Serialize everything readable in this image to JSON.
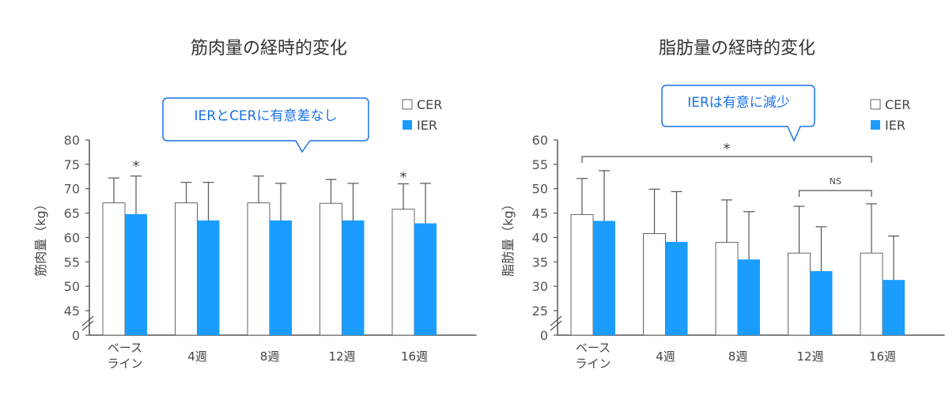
{
  "colors": {
    "cer_fill": "#ffffff",
    "ier_fill": "#1a9dff",
    "callout_border": "#1a73e8",
    "axis": "#555555",
    "error": "#555555"
  },
  "chart_data": [
    {
      "type": "bar",
      "title": "筋肉量の経時的変化",
      "ylabel": "筋肉量（kg）",
      "categories": [
        "ベース\nライン",
        "4週",
        "8週",
        "12週",
        "16週"
      ],
      "categories_display": [
        [
          "ベース",
          "ライン"
        ],
        [
          "4週"
        ],
        [
          "8週"
        ],
        [
          "12週"
        ],
        [
          "16週"
        ]
      ],
      "yticks": [
        0,
        45,
        50,
        55,
        60,
        65,
        70,
        75,
        80
      ],
      "axis_break": true,
      "ylim": [
        40,
        80
      ],
      "series": [
        {
          "name": "CER",
          "values": [
            67.1,
            67.1,
            67.1,
            67.0,
            65.8
          ],
          "errors": [
            5.1,
            4.2,
            5.5,
            4.9,
            5.2
          ]
        },
        {
          "name": "IER",
          "values": [
            64.8,
            63.5,
            63.5,
            63.5,
            62.9
          ],
          "errors": [
            7.8,
            7.8,
            7.6,
            7.6,
            8.2
          ]
        }
      ],
      "significance_marks": [
        "*",
        "*"
      ],
      "callout": "IERとCERに有意差なし",
      "legend_position": "top-right"
    },
    {
      "type": "bar",
      "title": "脂肪量の経時的変化",
      "ylabel": "脂肪量（kg）",
      "categories": [
        "ベース\nライン",
        "4週",
        "8週",
        "12週",
        "16週"
      ],
      "categories_display": [
        [
          "ベース",
          "ライン"
        ],
        [
          "4週"
        ],
        [
          "8週"
        ],
        [
          "12週"
        ],
        [
          "16週"
        ]
      ],
      "yticks": [
        0,
        25,
        30,
        35,
        40,
        45,
        50,
        55,
        60
      ],
      "axis_break": true,
      "ylim": [
        20,
        60
      ],
      "series": [
        {
          "name": "CER",
          "values": [
            44.7,
            40.8,
            39.0,
            36.8,
            36.8
          ],
          "errors": [
            7.4,
            9.1,
            8.7,
            9.6,
            10.1
          ]
        },
        {
          "name": "IER",
          "values": [
            43.4,
            39.1,
            35.5,
            33.1,
            31.3
          ],
          "errors": [
            10.3,
            10.3,
            9.8,
            9.1,
            9.0
          ]
        }
      ],
      "significance_marks": [
        "*",
        "NS"
      ],
      "callout": "IERは有意に減少",
      "legend_position": "top-right"
    }
  ]
}
